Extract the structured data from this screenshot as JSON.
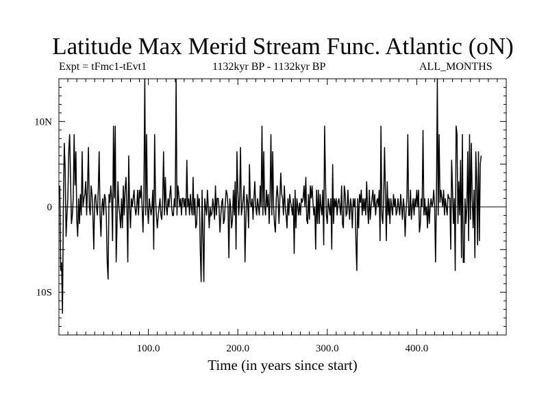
{
  "chart_data": {
    "type": "line",
    "title": "Latitude Max Merid Stream Func. Atlantic (oN)",
    "subtitle_left": "Expt = tFmc1-tEvt1",
    "subtitle_center": "1132kyr BP - 1132kyr BP",
    "subtitle_right": "ALL_MONTHS",
    "xlabel": "Time (in years since start)",
    "ylabel": "",
    "xlim": [
      0,
      500
    ],
    "ylim": [
      -15,
      15
    ],
    "grid": false,
    "x_ticks": [
      {
        "value": 100,
        "label": "100.0"
      },
      {
        "value": 200,
        "label": "200.0"
      },
      {
        "value": 300,
        "label": "300.0"
      },
      {
        "value": 400,
        "label": "400.0"
      }
    ],
    "y_ticks": [
      {
        "value": 10,
        "label": "10N"
      },
      {
        "value": 0,
        "label": "0"
      },
      {
        "value": -10,
        "label": "10S"
      }
    ],
    "series": [
      {
        "x_start": 1,
        "x_step": 1,
        "values": [
          2.5,
          -7.5,
          -6.5,
          -12.5,
          0,
          7.5,
          4.5,
          -3.5,
          -1,
          1,
          6.5,
          8.5,
          3.5,
          -2,
          -1,
          1,
          8.5,
          2.5,
          6.5,
          -1.5,
          -3.5,
          1,
          -2,
          1.5,
          -1,
          6.5,
          0,
          1,
          1.5,
          3,
          -1,
          2.5,
          7,
          0,
          -1,
          2.5,
          1.5,
          -1,
          -5,
          1,
          1.5,
          0,
          -1,
          2,
          6.5,
          -1,
          -3.5,
          0,
          1,
          -1,
          1.5,
          1,
          -1,
          -6.5,
          -8.5,
          1.5,
          0.5,
          2.5,
          1,
          -4,
          9.5,
          1,
          9.5,
          -6.5,
          -2,
          3,
          0,
          -1,
          -2.5,
          1,
          -2.5,
          2.5,
          -1,
          2,
          3.5,
          0,
          -6.5,
          6,
          0,
          -2.5,
          1,
          0,
          1,
          2,
          0,
          -1,
          0,
          2,
          -1,
          2,
          1,
          2.5,
          0,
          -3,
          1.5,
          15,
          -1,
          8.5,
          0,
          -2,
          1,
          0,
          -1,
          0,
          2,
          -5,
          8.5,
          1,
          -1,
          -2.5,
          -1,
          0,
          1,
          -1,
          -1.5,
          1,
          6.5,
          -1,
          3.5,
          0,
          -1,
          1,
          0,
          1.5,
          2.5,
          0,
          -1,
          -1,
          1,
          0,
          15,
          -1,
          2.5,
          1.5,
          0,
          1,
          -1,
          1,
          1,
          0,
          1,
          -1,
          5.5,
          0,
          1,
          -1,
          1.5,
          0,
          -1,
          3.5,
          -1,
          1,
          -2.5,
          -2,
          1.5,
          0,
          1,
          -5,
          -8.8,
          2,
          -3.5,
          -8.8,
          1,
          0,
          -1,
          2,
          0,
          -2.5,
          0,
          -1,
          -0.8,
          1,
          0,
          -1.5,
          2.5,
          -1,
          1,
          1,
          0,
          -3,
          -1,
          0.5,
          1,
          -2,
          -1.5,
          0.5,
          2,
          1.5,
          0,
          -6,
          1,
          0,
          -2.5,
          -1.5,
          2,
          -1,
          3,
          -5,
          6.5,
          2,
          -1,
          1,
          7,
          -1,
          0,
          1,
          2.5,
          -6.5,
          -1.5,
          1.5,
          0.5,
          -2.5,
          5,
          0.5,
          0,
          1,
          -1.5,
          1,
          3,
          0,
          -1,
          1,
          0,
          -1,
          2.5,
          0,
          9.5,
          -1,
          6.5,
          0,
          -1,
          2,
          0,
          1.5,
          -2,
          1,
          8.5,
          -1,
          6.5,
          0,
          -2,
          -3,
          1,
          2.5,
          1,
          -2,
          1,
          4,
          1.5,
          1,
          -1,
          2.5,
          0,
          -1,
          -2.5,
          1,
          -1,
          1.5,
          0.5,
          0,
          -1,
          1,
          -5.5,
          2,
          -2.5,
          1,
          0,
          -1,
          0.5,
          -1,
          1,
          0.5,
          1,
          2.5,
          0,
          3.5,
          -1.5,
          -2,
          1.5,
          -1.5,
          2.5,
          1,
          2.5,
          0.5,
          -1,
          0,
          -5,
          2,
          -2,
          2,
          -2,
          1.5,
          0,
          -1,
          2,
          -4.5,
          9.5,
          3,
          -1,
          -2,
          1,
          0,
          -1,
          1,
          -5,
          5,
          -2,
          1,
          0,
          1,
          -1,
          0.5,
          1,
          0,
          -1,
          2.5,
          -2,
          -2.5,
          2.5,
          1.5,
          -1,
          -0.8,
          2,
          0,
          -1.5,
          1,
          0,
          -2.5,
          1,
          0,
          1,
          -4,
          -7.5,
          1,
          -2.5,
          1.5,
          0.5,
          2,
          -1,
          1,
          -0.5,
          1,
          -1,
          3,
          0,
          -2,
          2,
          -1.5,
          0,
          1,
          2,
          0,
          1.5,
          -1,
          0.5,
          1,
          0,
          2,
          -4,
          9.5,
          -1,
          -2,
          1,
          7,
          1.5,
          -4,
          3,
          -1,
          1,
          -2,
          1,
          0,
          -1,
          1.5,
          0,
          1,
          -1,
          -0.5,
          1,
          0,
          -1,
          1.5,
          0,
          -1.5,
          1,
          0,
          -3.5,
          -0.5,
          1,
          8.5,
          -1,
          -1,
          2,
          -1.5,
          0,
          1,
          -1,
          1,
          0,
          2,
          0,
          2,
          -3,
          -2,
          1,
          0,
          9,
          -1,
          1,
          -1,
          0,
          -2.5,
          1,
          -2,
          0,
          1,
          0,
          0.5,
          2,
          0,
          -6.5,
          1,
          15,
          -1,
          8.5,
          0.5,
          2,
          1,
          0,
          2,
          -1,
          1,
          0,
          -1,
          1.5,
          1,
          1,
          -5,
          5.5,
          2,
          -2,
          1,
          -7.5,
          9.5,
          8.5,
          -2,
          3,
          -1,
          5.5,
          -6,
          8.5,
          -6.5,
          -6.5,
          1,
          -2,
          0,
          6.5,
          -4,
          8.5,
          -1.5,
          7.5,
          1,
          -2.5,
          2,
          -6,
          6.5,
          3,
          -4.5,
          6.5,
          -4,
          5,
          6
        ]
      }
    ]
  }
}
